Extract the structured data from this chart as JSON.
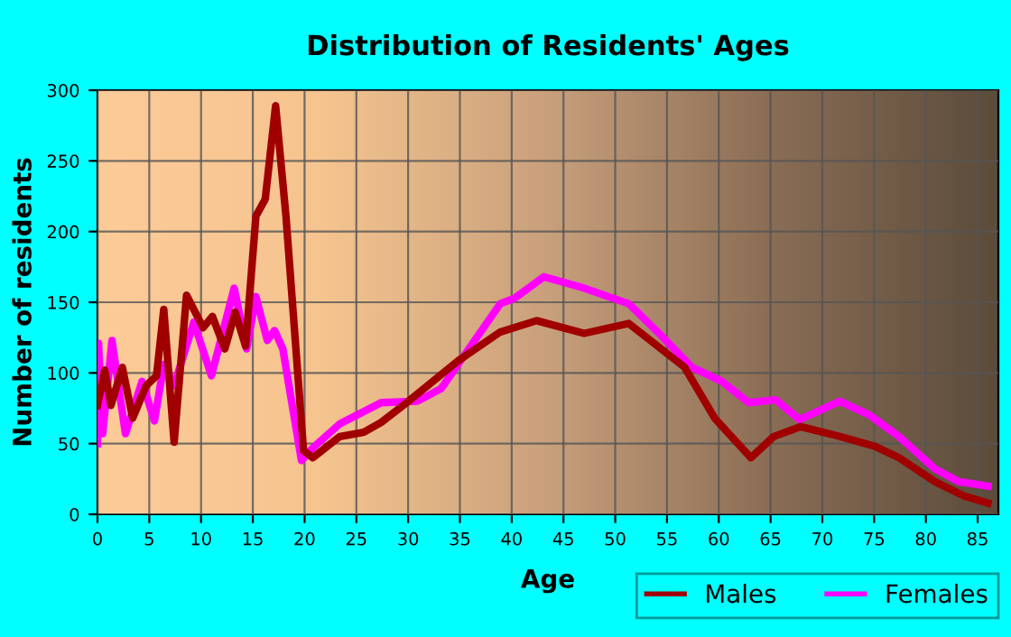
{
  "chart_data": {
    "type": "line",
    "title": "Distribution of Residents' Ages",
    "xlabel": "Age",
    "ylabel": "Number of residents",
    "xlim": [
      0,
      87
    ],
    "ylim": [
      0,
      300
    ],
    "xticks": [
      0,
      5,
      10,
      15,
      20,
      25,
      30,
      35,
      40,
      45,
      50,
      55,
      60,
      65,
      70,
      75,
      80,
      85
    ],
    "yticks": [
      0,
      50,
      100,
      150,
      200,
      250,
      300
    ],
    "grid": true,
    "legend": "bottom right",
    "line_style": "solid",
    "series": [
      {
        "name": "Males",
        "color": "#a00000",
        "x": [
          0,
          0.7,
          1.3,
          2.4,
          3.4,
          4.7,
          5.7,
          6.4,
          7.4,
          8.6,
          10.2,
          11.1,
          12.3,
          13.3,
          14.3,
          15.3,
          16.2,
          17.2,
          18.2,
          19.9,
          20.8,
          23.4,
          25.7,
          27.4,
          29.7,
          34.9,
          38.9,
          42.4,
          47.0,
          51.3,
          56.7,
          59.6,
          63.1,
          65.3,
          67.9,
          71.7,
          75.1,
          77.4,
          80.9,
          83.7,
          86.0
        ],
        "values": [
          77,
          102,
          77,
          104,
          68,
          91,
          98,
          145,
          51,
          155,
          132,
          140,
          117,
          143,
          119,
          211,
          223,
          289,
          211,
          45,
          40,
          55,
          58,
          65,
          78,
          109,
          129,
          137,
          128,
          135,
          104,
          68,
          40,
          55,
          62,
          55,
          48,
          40,
          23,
          13,
          8
        ]
      },
      {
        "name": "Females",
        "color": "#ff00ff",
        "x": [
          0,
          0.1,
          0.5,
          1.4,
          2.7,
          4.3,
          5.5,
          6.4,
          7.4,
          9.3,
          11.0,
          13.2,
          14.4,
          15.3,
          16.4,
          17.1,
          17.9,
          19.7,
          20.8,
          23.4,
          27.4,
          30.9,
          33.2,
          38.9,
          40.3,
          43.1,
          47.0,
          51.3,
          54.5,
          57.4,
          60.3,
          62.9,
          65.5,
          67.8,
          71.7,
          74.6,
          77.4,
          80.9,
          83.2,
          86.0
        ],
        "values": [
          50,
          121,
          57,
          123,
          57,
          94,
          66,
          106,
          91,
          136,
          98,
          160,
          117,
          154,
          123,
          130,
          117,
          38,
          47,
          64,
          79,
          80,
          89,
          149,
          153,
          168,
          160,
          149,
          126,
          104,
          94,
          79,
          81,
          67,
          80,
          70,
          55,
          32,
          23,
          20
        ]
      }
    ]
  }
}
